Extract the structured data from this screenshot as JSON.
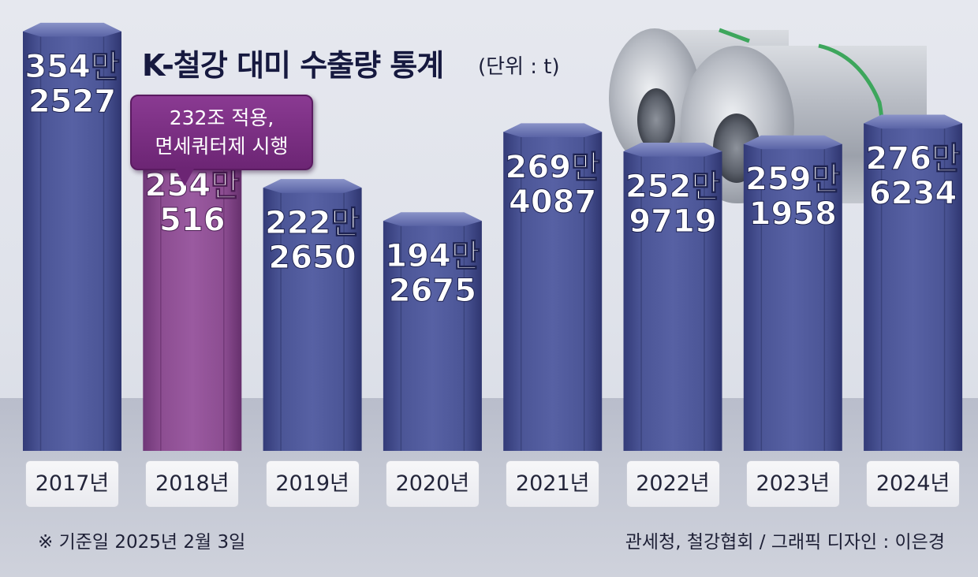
{
  "title": "K-철강 대미 수출량 통계",
  "unit_label": "(단위 : t)",
  "annotation": {
    "year": "2018년",
    "lines": [
      "232조 적용,",
      "면세쿼터제 시행"
    ]
  },
  "footnote": "※ 기준일 2025년 2월 3일",
  "source": "관세청, 철강협회 / 그래픽 디자인 : 이은경",
  "colors": {
    "bar": "#4a5494",
    "bar_highlight": "#8a4a8e",
    "title": "#16193f"
  },
  "chart_data": {
    "type": "bar",
    "categories": [
      "2017년",
      "2018년",
      "2019년",
      "2020년",
      "2021년",
      "2022년",
      "2023년",
      "2024년"
    ],
    "values": [
      3542527,
      2540516,
      2222650,
      1942675,
      2694087,
      2529719,
      2591958,
      2766234
    ],
    "value_labels": [
      [
        "354만",
        "2527"
      ],
      [
        "254만",
        "516"
      ],
      [
        "222만",
        "2650"
      ],
      [
        "194만",
        "2675"
      ],
      [
        "269만",
        "4087"
      ],
      [
        "252만",
        "9719"
      ],
      [
        "259만",
        "1958"
      ],
      [
        "276만",
        "6234"
      ]
    ],
    "highlight_index": 1,
    "ylim": [
      0,
      3600000
    ],
    "grid": false,
    "legend": "none"
  }
}
